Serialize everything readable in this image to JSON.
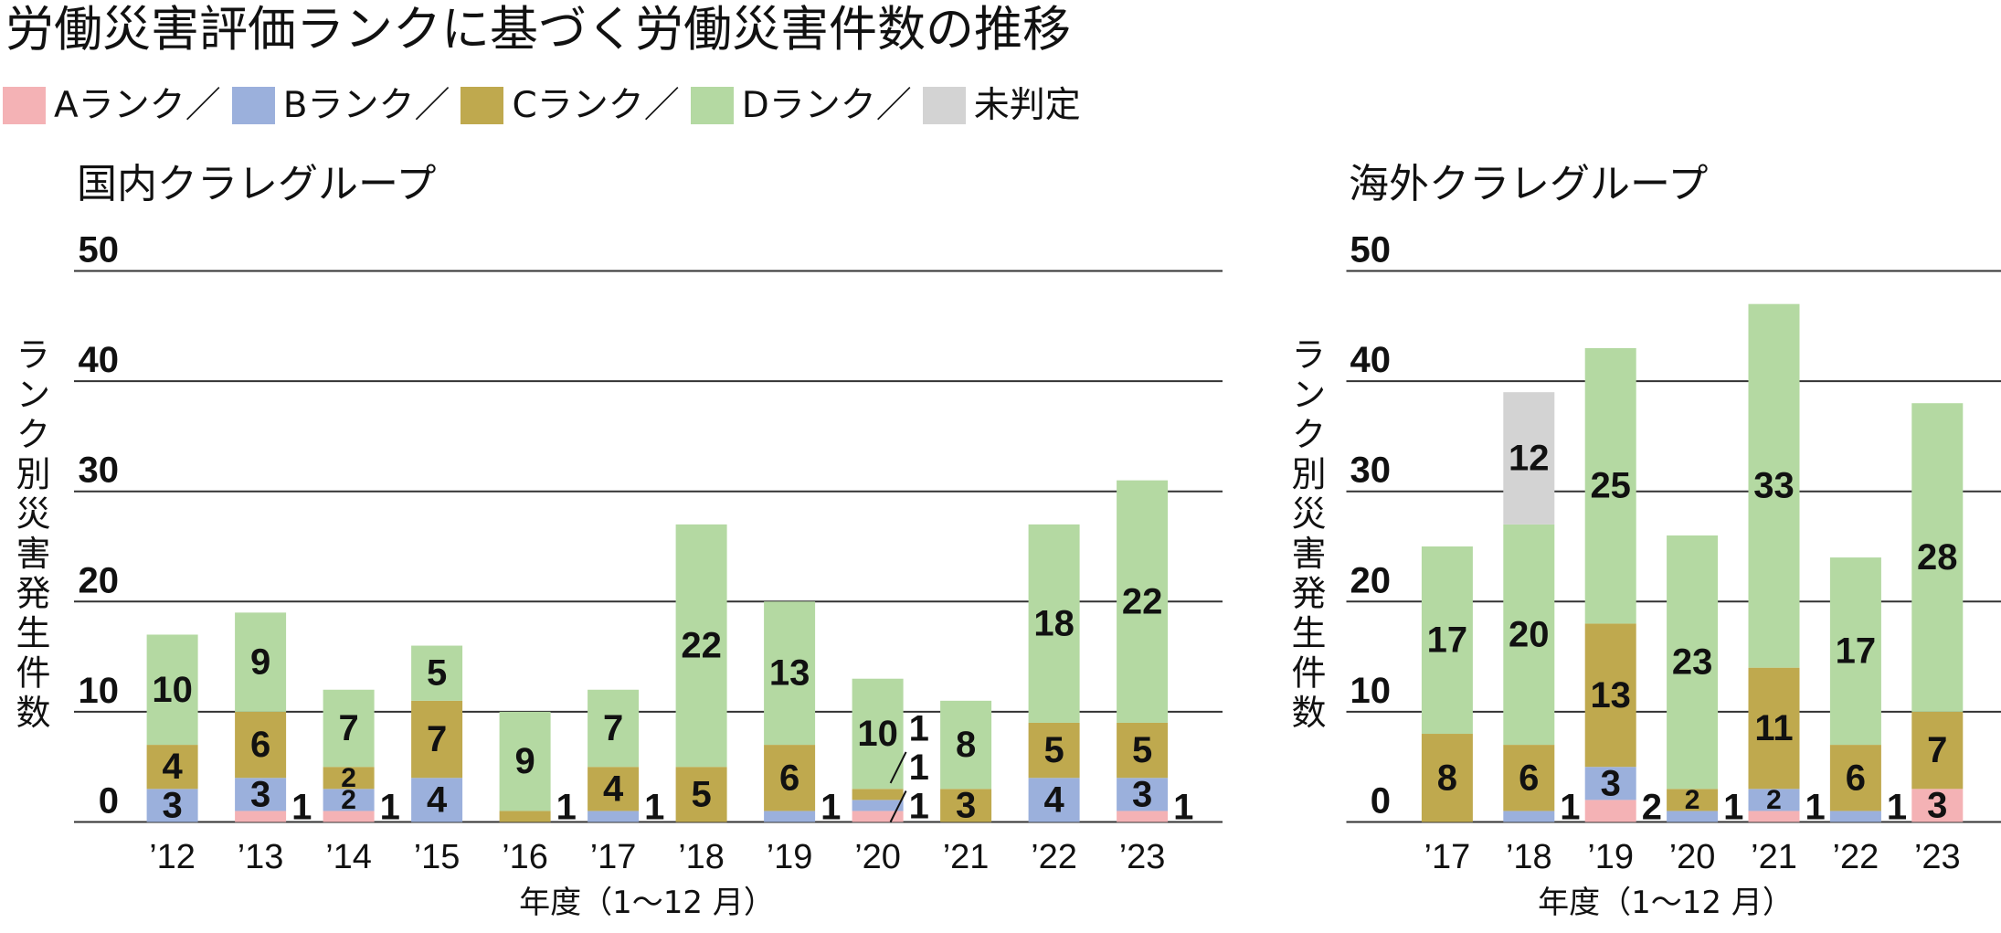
{
  "title": "労働災害評価ランクに基づく労働災害件数の推移",
  "legend": [
    {
      "label": "Aランク",
      "separator": "／",
      "color": "#f4b2b5"
    },
    {
      "label": "Bランク",
      "separator": "／",
      "color": "#9bb0dc"
    },
    {
      "label": "Cランク",
      "separator": "／",
      "color": "#bfa94e"
    },
    {
      "label": "Dランク",
      "separator": "／",
      "color": "#b4d9a2"
    },
    {
      "label": "未判定",
      "color": "#d3d3d3"
    }
  ],
  "chart_data": [
    {
      "type": "bar",
      "stacked": true,
      "title": "国内クラレグループ",
      "ylabel": "ランク別災害発生件数",
      "xlabel": "年度（1～12 月）",
      "ylim": [
        0,
        50
      ],
      "yticks": [
        0,
        10,
        20,
        30,
        40,
        50
      ],
      "grid": true,
      "categories": [
        "’12",
        "’13",
        "’14",
        "’15",
        "’16",
        "’17",
        "’18",
        "’19",
        "’20",
        "’21",
        "’22",
        "’23"
      ],
      "series": [
        {
          "name": "Aランク",
          "values": [
            0,
            1,
            1,
            0,
            0,
            0,
            0,
            0,
            1,
            0,
            0,
            1
          ]
        },
        {
          "name": "Bランク",
          "values": [
            3,
            3,
            2,
            4,
            0,
            1,
            0,
            1,
            1,
            0,
            4,
            3
          ]
        },
        {
          "name": "Cランク",
          "values": [
            4,
            6,
            2,
            7,
            1,
            4,
            5,
            6,
            1,
            3,
            5,
            5
          ]
        },
        {
          "name": "Dランク",
          "values": [
            10,
            9,
            7,
            5,
            9,
            7,
            22,
            13,
            10,
            8,
            18,
            22
          ]
        }
      ]
    },
    {
      "type": "bar",
      "stacked": true,
      "title": "海外クラレグループ",
      "ylabel": "ランク別災害発生件数",
      "xlabel": "年度（1～12 月）",
      "ylim": [
        0,
        50
      ],
      "yticks": [
        0,
        10,
        20,
        30,
        40,
        50
      ],
      "grid": true,
      "categories": [
        "’17",
        "’18",
        "’19",
        "’20",
        "’21",
        "’22",
        "’23"
      ],
      "series": [
        {
          "name": "Aランク",
          "values": [
            0,
            0,
            2,
            0,
            1,
            0,
            3
          ]
        },
        {
          "name": "Bランク",
          "values": [
            0,
            1,
            3,
            1,
            2,
            1,
            0
          ]
        },
        {
          "name": "Cランク",
          "values": [
            8,
            6,
            13,
            2,
            11,
            6,
            7
          ]
        },
        {
          "name": "Dランク",
          "values": [
            17,
            20,
            25,
            23,
            33,
            17,
            28
          ]
        },
        {
          "name": "未判定",
          "values": [
            0,
            12,
            0,
            0,
            0,
            0,
            0
          ]
        }
      ]
    }
  ]
}
